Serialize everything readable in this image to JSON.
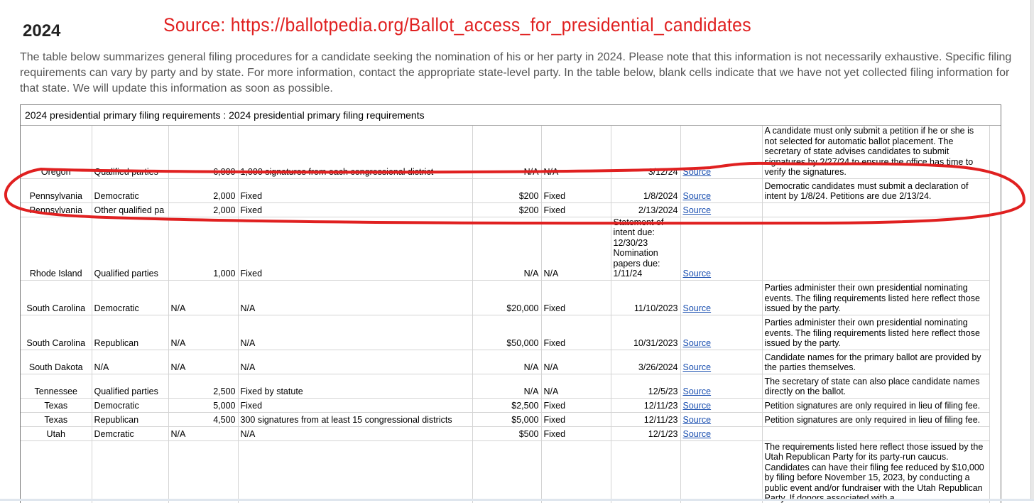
{
  "header": {
    "year": "2024",
    "source": "Source: https://ballotpedia.org/Ballot_access_for_presidential_candidates",
    "intro": "The table below summarizes general filing procedures for a candidate seeking the nomination of his or her party in 2024. Please note that this information is not necessarily exhaustive. Specific filing requirements can vary by party and by state. For more information, contact the appropriate state-level party. In the table below, blank cells indicate that we have not yet collected filing information for that state. We will update this information as soon as possible."
  },
  "table": {
    "caption": "2024 presidential primary filing requirements : 2024 presidential primary filing requirements",
    "rows": [
      {
        "state": "Oregon",
        "party": "Qualified parties",
        "sigs": "",
        "num": "6,000",
        "type": "1,000 signatures from each congressional district",
        "fee": "N/A",
        "feetype": "N/A",
        "deadline": "3/12/24",
        "link": "Source",
        "notes": "A candidate must only submit a petition if he or she is not selected for automatic ballot placement. The secretary of state advises candidates to submit signatures by 2/27/24 to ensure the office has time to verify the signatures."
      },
      {
        "state": "Pennsylvania",
        "party": "Democratic",
        "sigs": "",
        "num": "2,000",
        "type": "Fixed",
        "fee": "$200",
        "feetype": "Fixed",
        "deadline": "1/8/2024",
        "link": "Source",
        "notes": "Democratic candidates must submit a declaration of intent by 1/8/24. Petitions are due 2/13/24."
      },
      {
        "state": "Pennsylvania",
        "party": "Other qualified pa",
        "sigs": "",
        "num": "2,000",
        "type": "Fixed",
        "fee": "$200",
        "feetype": "Fixed",
        "deadline": "2/13/2024",
        "link": "Source",
        "notes": ""
      },
      {
        "state": "Rhode Island",
        "party": "Qualified parties",
        "sigs": "",
        "num": "1,000",
        "type": "Fixed",
        "fee": "N/A",
        "feetype": "N/A",
        "deadline": "Statement of intent due: 12/30/23 Nomination papers due: 1/11/24",
        "link": "Source",
        "notes": ""
      },
      {
        "state": "South Carolina",
        "party": "Democratic",
        "sigs": "N/A",
        "num": "",
        "type": "N/A",
        "fee": "$20,000",
        "feetype": "Fixed",
        "deadline": "11/10/2023",
        "link": "Source",
        "notes": "Parties administer their own presidential nominating events. The filing requirements listed here reflect those issued by the party."
      },
      {
        "state": "South Carolina",
        "party": "Republican",
        "sigs": "N/A",
        "num": "",
        "type": "N/A",
        "fee": "$50,000",
        "feetype": "Fixed",
        "deadline": "10/31/2023",
        "link": "Source",
        "notes": "Parties administer their own presidential nominating events. The filing requirements listed here reflect those issued by the party."
      },
      {
        "state": "South Dakota",
        "party": "N/A",
        "sigs": "N/A",
        "num": "",
        "type": "N/A",
        "fee": "N/A",
        "feetype": "N/A",
        "deadline": "3/26/2024",
        "link": "Source",
        "notes": "Candidate names for the primary ballot are provided by the parties themselves."
      },
      {
        "state": "Tennessee",
        "party": "Qualified parties",
        "sigs": "",
        "num": "2,500",
        "type": "Fixed by statute",
        "fee": "N/A",
        "feetype": "N/A",
        "deadline": "12/5/23",
        "link": "Source",
        "notes": "The secretary of state can also place candidate names directly on the ballot."
      },
      {
        "state": "Texas",
        "party": "Democratic",
        "sigs": "",
        "num": "5,000",
        "type": "Fixed",
        "fee": "$2,500",
        "feetype": "Fixed",
        "deadline": "12/11/23",
        "link": "Source",
        "notes": "Petition signatures are only required in lieu of filing fee."
      },
      {
        "state": "Texas",
        "party": "Republican",
        "sigs": "",
        "num": "4,500",
        "type": "300 signatures from at least 15 congressional districts",
        "fee": "$5,000",
        "feetype": "Fixed",
        "deadline": "12/11/23",
        "link": "Source",
        "notes": "Petition signatures are only required in lieu of filing fee."
      },
      {
        "state": "Utah",
        "party": "Demcratic",
        "sigs": "N/A",
        "num": "",
        "type": "N/A",
        "fee": "$500",
        "feetype": "Fixed",
        "deadline": "12/1/23",
        "link": "Source",
        "notes": ""
      },
      {
        "state": "",
        "party": "",
        "sigs": "",
        "num": "",
        "type": "",
        "fee": "",
        "feetype": "",
        "deadline": "",
        "link": "",
        "notes": "The requirements listed here reflect those issued by the Utah Republican Party for its party-run caucus. Candidates can have their filing fee reduced by $10,000 by filing before November 15, 2023, by conducting a public event and/or fundraiser with the Utah Republican Party. If donors associated with a"
      }
    ]
  },
  "annotation": {
    "color": "#e02020"
  }
}
